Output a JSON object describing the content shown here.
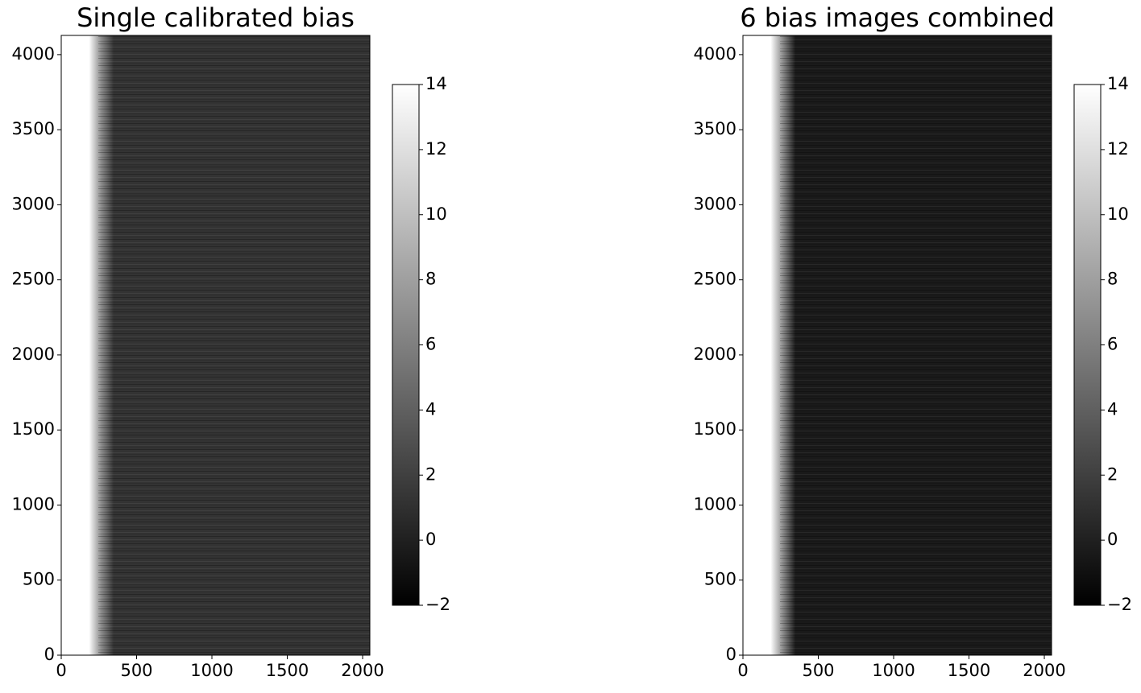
{
  "chart_data": [
    {
      "type": "image",
      "title": "Single calibrated bias",
      "xlim": [
        0,
        2048
      ],
      "ylim": [
        0,
        4128
      ],
      "xticks": [
        0,
        500,
        1000,
        1500,
        2000
      ],
      "yticks": [
        0,
        500,
        1000,
        1500,
        2000,
        2500,
        3000,
        3500,
        4000
      ],
      "clim": [
        -2,
        14
      ],
      "cticks": [
        {
          "value": -2,
          "label": "−2"
        },
        0,
        2,
        4,
        6,
        8,
        10,
        12,
        14
      ],
      "color": "#333333"
    },
    {
      "type": "image",
      "title": "6 bias images combined",
      "xlim": [
        0,
        2048
      ],
      "ylim": [
        0,
        4128
      ],
      "xticks": [
        0,
        500,
        1000,
        1500,
        2000
      ],
      "yticks": [
        0,
        500,
        1000,
        1500,
        2000,
        2500,
        3000,
        3500,
        4000
      ],
      "clim": [
        -2,
        14
      ],
      "cticks": [
        {
          "value": -2,
          "label": "−2"
        },
        0,
        2,
        4,
        6,
        8,
        10,
        12,
        14
      ],
      "color": "#1a1a1a"
    }
  ]
}
